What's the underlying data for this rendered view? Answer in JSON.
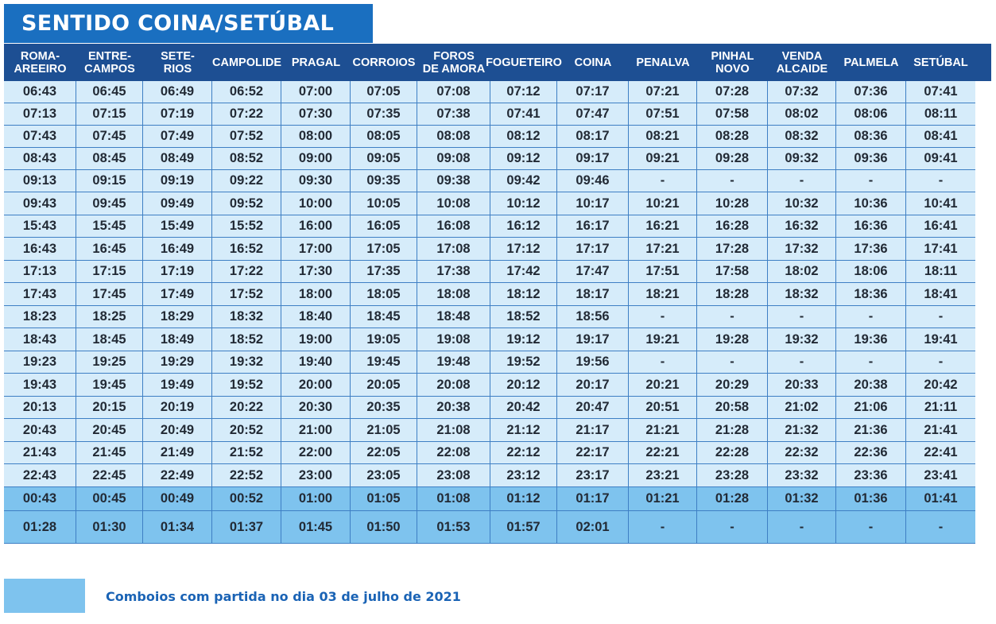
{
  "title": "SENTIDO COINA/SETÚBAL",
  "columns": [
    "ROMA-\nAREEIRO",
    "ENTRE-\nCAMPOS",
    "SETE-\nRIOS",
    "CAMPOLIDE",
    "PRAGAL",
    "CORROIOS",
    "FOROS\nDE AMORA",
    "FOGUETEIRO",
    "COINA",
    "PENALVA",
    "PINHAL\nNOVO",
    "VENDA\nALCAIDE",
    "PALMELA",
    "SETÚBAL"
  ],
  "rows": [
    {
      "highlight": false,
      "times": [
        "06:43",
        "06:45",
        "06:49",
        "06:52",
        "07:00",
        "07:05",
        "07:08",
        "07:12",
        "07:17",
        "07:21",
        "07:28",
        "07:32",
        "07:36",
        "07:41"
      ]
    },
    {
      "highlight": false,
      "times": [
        "07:13",
        "07:15",
        "07:19",
        "07:22",
        "07:30",
        "07:35",
        "07:38",
        "07:41",
        "07:47",
        "07:51",
        "07:58",
        "08:02",
        "08:06",
        "08:11"
      ]
    },
    {
      "highlight": false,
      "times": [
        "07:43",
        "07:45",
        "07:49",
        "07:52",
        "08:00",
        "08:05",
        "08:08",
        "08:12",
        "08:17",
        "08:21",
        "08:28",
        "08:32",
        "08:36",
        "08:41"
      ]
    },
    {
      "highlight": false,
      "times": [
        "08:43",
        "08:45",
        "08:49",
        "08:52",
        "09:00",
        "09:05",
        "09:08",
        "09:12",
        "09:17",
        "09:21",
        "09:28",
        "09:32",
        "09:36",
        "09:41"
      ]
    },
    {
      "highlight": false,
      "times": [
        "09:13",
        "09:15",
        "09:19",
        "09:22",
        "09:30",
        "09:35",
        "09:38",
        "09:42",
        "09:46",
        "-",
        "-",
        "-",
        "-",
        "-"
      ]
    },
    {
      "highlight": false,
      "times": [
        "09:43",
        "09:45",
        "09:49",
        "09:52",
        "10:00",
        "10:05",
        "10:08",
        "10:12",
        "10:17",
        "10:21",
        "10:28",
        "10:32",
        "10:36",
        "10:41"
      ]
    },
    {
      "highlight": false,
      "times": [
        "15:43",
        "15:45",
        "15:49",
        "15:52",
        "16:00",
        "16:05",
        "16:08",
        "16:12",
        "16:17",
        "16:21",
        "16:28",
        "16:32",
        "16:36",
        "16:41"
      ]
    },
    {
      "highlight": false,
      "times": [
        "16:43",
        "16:45",
        "16:49",
        "16:52",
        "17:00",
        "17:05",
        "17:08",
        "17:12",
        "17:17",
        "17:21",
        "17:28",
        "17:32",
        "17:36",
        "17:41"
      ]
    },
    {
      "highlight": false,
      "times": [
        "17:13",
        "17:15",
        "17:19",
        "17:22",
        "17:30",
        "17:35",
        "17:38",
        "17:42",
        "17:47",
        "17:51",
        "17:58",
        "18:02",
        "18:06",
        "18:11"
      ]
    },
    {
      "highlight": false,
      "times": [
        "17:43",
        "17:45",
        "17:49",
        "17:52",
        "18:00",
        "18:05",
        "18:08",
        "18:12",
        "18:17",
        "18:21",
        "18:28",
        "18:32",
        "18:36",
        "18:41"
      ]
    },
    {
      "highlight": false,
      "times": [
        "18:23",
        "18:25",
        "18:29",
        "18:32",
        "18:40",
        "18:45",
        "18:48",
        "18:52",
        "18:56",
        "-",
        "-",
        "-",
        "-",
        "-"
      ]
    },
    {
      "highlight": false,
      "times": [
        "18:43",
        "18:45",
        "18:49",
        "18:52",
        "19:00",
        "19:05",
        "19:08",
        "19:12",
        "19:17",
        "19:21",
        "19:28",
        "19:32",
        "19:36",
        "19:41"
      ]
    },
    {
      "highlight": false,
      "times": [
        "19:23",
        "19:25",
        "19:29",
        "19:32",
        "19:40",
        "19:45",
        "19:48",
        "19:52",
        "19:56",
        "-",
        "-",
        "-",
        "-",
        "-"
      ]
    },
    {
      "highlight": false,
      "times": [
        "19:43",
        "19:45",
        "19:49",
        "19:52",
        "20:00",
        "20:05",
        "20:08",
        "20:12",
        "20:17",
        "20:21",
        "20:29",
        "20:33",
        "20:38",
        "20:42"
      ]
    },
    {
      "highlight": false,
      "times": [
        "20:13",
        "20:15",
        "20:19",
        "20:22",
        "20:30",
        "20:35",
        "20:38",
        "20:42",
        "20:47",
        "20:51",
        "20:58",
        "21:02",
        "21:06",
        "21:11"
      ]
    },
    {
      "highlight": false,
      "times": [
        "20:43",
        "20:45",
        "20:49",
        "20:52",
        "21:00",
        "21:05",
        "21:08",
        "21:12",
        "21:17",
        "21:21",
        "21:28",
        "21:32",
        "21:36",
        "21:41"
      ]
    },
    {
      "highlight": false,
      "times": [
        "21:43",
        "21:45",
        "21:49",
        "21:52",
        "22:00",
        "22:05",
        "22:08",
        "22:12",
        "22:17",
        "22:21",
        "22:28",
        "22:32",
        "22:36",
        "22:41"
      ]
    },
    {
      "highlight": false,
      "times": [
        "22:43",
        "22:45",
        "22:49",
        "22:52",
        "23:00",
        "23:05",
        "23:08",
        "23:12",
        "23:17",
        "23:21",
        "23:28",
        "23:32",
        "23:36",
        "23:41"
      ]
    },
    {
      "highlight": true,
      "times": [
        "00:43",
        "00:45",
        "00:49",
        "00:52",
        "01:00",
        "01:05",
        "01:08",
        "01:12",
        "01:17",
        "01:21",
        "01:28",
        "01:32",
        "01:36",
        "01:41"
      ]
    },
    {
      "highlight": true,
      "times": [
        "01:28",
        "01:30",
        "01:34",
        "01:37",
        "01:45",
        "01:50",
        "01:53",
        "01:57",
        "02:01",
        "-",
        "-",
        "-",
        "-",
        "-"
      ]
    }
  ],
  "legend": {
    "text": "Comboios com partida no dia 03 de julho de 2021",
    "swatch_color": "#7ec3ee"
  },
  "colors": {
    "title_bg": "#1a6fc0",
    "header_bg": "#1d4f93",
    "row_light": "#d6ecfa",
    "row_dark": "#7ec3ee",
    "legend_text": "#1a63b5"
  }
}
